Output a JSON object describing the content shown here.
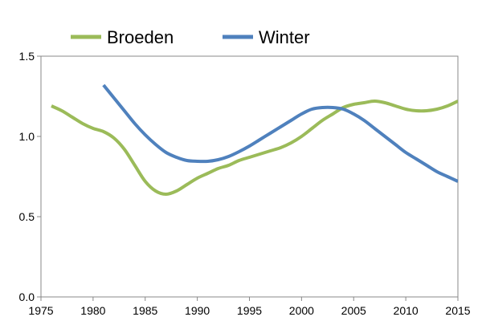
{
  "chart_data": {
    "type": "line",
    "title": "",
    "xlabel": "",
    "ylabel": "",
    "xlim": [
      1975,
      2015
    ],
    "ylim": [
      0.0,
      1.5
    ],
    "x_ticks": [
      "1975",
      "1980",
      "1985",
      "1990",
      "1995",
      "2000",
      "2005",
      "2010",
      "2015"
    ],
    "y_ticks": [
      "0.0",
      "0.5",
      "1.0",
      "1.5"
    ],
    "grid": false,
    "legend_position": "top",
    "series": [
      {
        "name": "Broeden",
        "color": "#9bbb59",
        "x": [
          1976,
          1977,
          1978,
          1979,
          1980,
          1981,
          1982,
          1983,
          1984,
          1985,
          1986,
          1987,
          1988,
          1989,
          1990,
          1991,
          1992,
          1993,
          1994,
          1995,
          1996,
          1997,
          1998,
          1999,
          2000,
          2001,
          2002,
          2003,
          2004,
          2005,
          2006,
          2007,
          2008,
          2009,
          2010,
          2011,
          2012,
          2013,
          2014,
          2015
        ],
        "values": [
          1.19,
          1.16,
          1.12,
          1.08,
          1.05,
          1.03,
          0.99,
          0.92,
          0.82,
          0.72,
          0.66,
          0.64,
          0.66,
          0.7,
          0.74,
          0.77,
          0.8,
          0.82,
          0.85,
          0.87,
          0.89,
          0.91,
          0.93,
          0.96,
          1.0,
          1.05,
          1.1,
          1.14,
          1.18,
          1.2,
          1.21,
          1.22,
          1.21,
          1.19,
          1.17,
          1.16,
          1.16,
          1.17,
          1.19,
          1.22
        ]
      },
      {
        "name": "Winter",
        "color": "#4f81bd",
        "x": [
          1981,
          1982,
          1983,
          1984,
          1985,
          1986,
          1987,
          1988,
          1989,
          1990,
          1991,
          1992,
          1993,
          1994,
          1995,
          1996,
          1997,
          1998,
          1999,
          2000,
          2001,
          2002,
          2003,
          2004,
          2005,
          2006,
          2007,
          2008,
          2009,
          2010,
          2011,
          2012,
          2013,
          2014,
          2015
        ],
        "values": [
          1.32,
          1.24,
          1.16,
          1.08,
          1.01,
          0.95,
          0.9,
          0.87,
          0.85,
          0.845,
          0.845,
          0.855,
          0.875,
          0.905,
          0.94,
          0.98,
          1.02,
          1.06,
          1.1,
          1.14,
          1.17,
          1.18,
          1.18,
          1.17,
          1.14,
          1.1,
          1.05,
          1.0,
          0.95,
          0.9,
          0.86,
          0.82,
          0.78,
          0.75,
          0.72
        ]
      }
    ]
  }
}
